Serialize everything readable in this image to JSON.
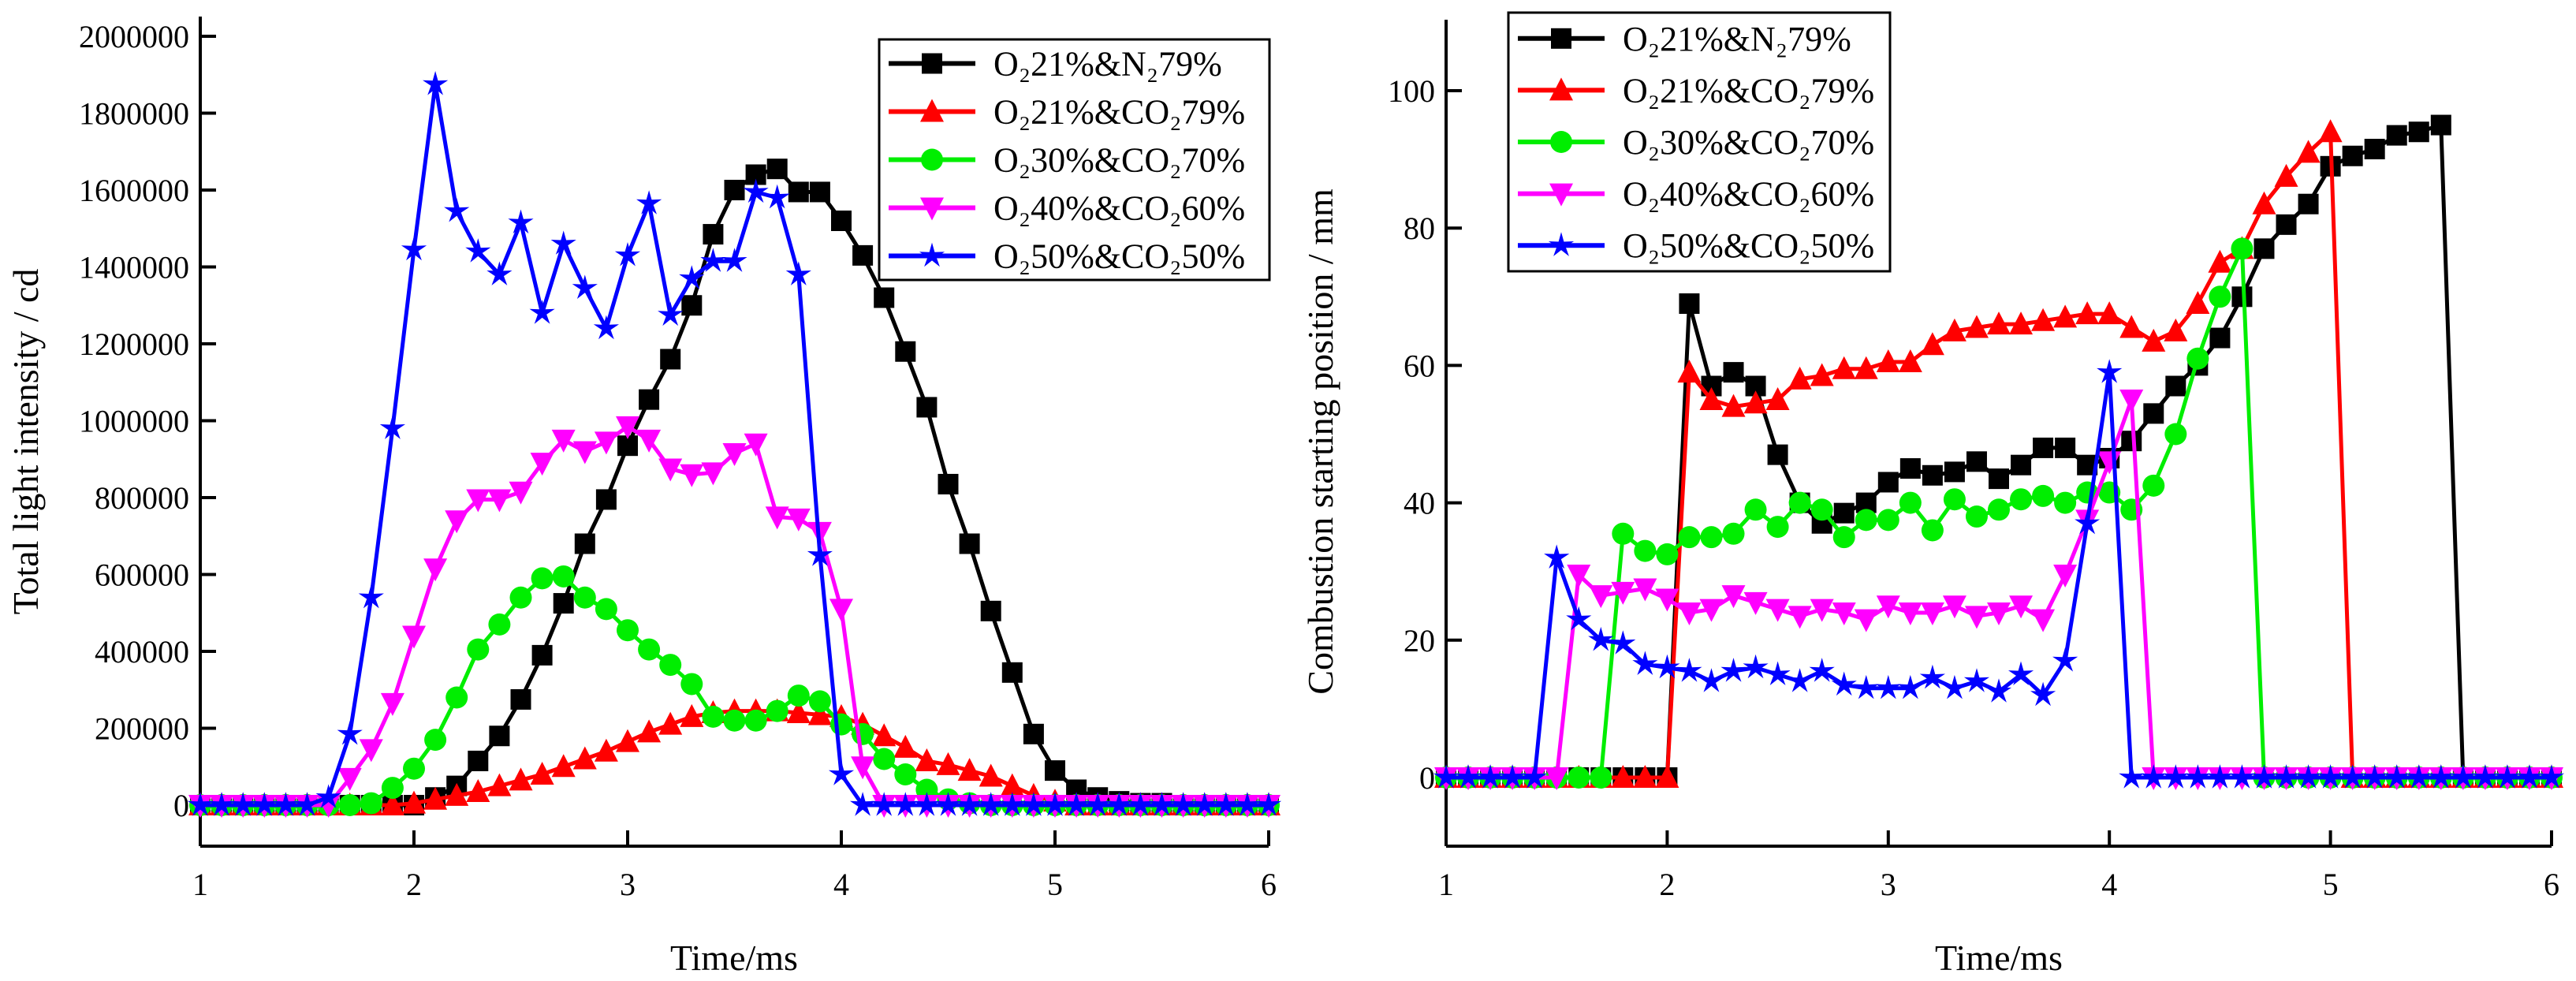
{
  "chart_data": [
    {
      "type": "line",
      "title": "",
      "xlabel": "Time/ms",
      "ylabel": "Total light intensity / cd",
      "xlim": [
        1,
        6
      ],
      "ylim": [
        -100000,
        2000000
      ],
      "xticks": [
        "1",
        "2",
        "3",
        "4",
        "5",
        "6"
      ],
      "yticks": [
        "0",
        "200000",
        "400000",
        "600000",
        "800000",
        "1000000",
        "1200000",
        "1400000",
        "1600000",
        "1800000",
        "2000000"
      ],
      "legend_position": "top-right",
      "x": {
        "start": 1.0,
        "step": 0.1,
        "count": 51
      },
      "series": [
        {
          "name": "O₂21%&N₂79%",
          "color": "#000000",
          "marker": "square",
          "values": [
            0,
            0,
            0,
            0,
            0,
            0,
            0,
            0,
            0,
            0,
            0,
            20000,
            50000,
            115000,
            180000,
            275000,
            390000,
            525000,
            680000,
            795000,
            935000,
            1055000,
            1160000,
            1300000,
            1485000,
            1600000,
            1640000,
            1655000,
            1595000,
            1595000,
            1520000,
            1430000,
            1320000,
            1180000,
            1035000,
            835000,
            680000,
            505000,
            345000,
            185000,
            90000,
            40000,
            20000,
            10000,
            5000,
            5000,
            0,
            0,
            0,
            0,
            0
          ]
        },
        {
          "name": "O₂21%&CO₂79%",
          "color": "#ff0000",
          "marker": "triangle-up",
          "values": [
            0,
            0,
            0,
            0,
            0,
            0,
            0,
            0,
            0,
            0,
            5000,
            15000,
            25000,
            35000,
            50000,
            65000,
            80000,
            100000,
            120000,
            140000,
            165000,
            190000,
            210000,
            230000,
            240000,
            245000,
            245000,
            245000,
            240000,
            235000,
            230000,
            210000,
            180000,
            150000,
            115000,
            105000,
            90000,
            75000,
            50000,
            25000,
            10000,
            0,
            0,
            0,
            0,
            0,
            0,
            0,
            0,
            0,
            0
          ]
        },
        {
          "name": "O₂30%&CO₂70%",
          "color": "#00ee00",
          "marker": "circle",
          "values": [
            0,
            0,
            0,
            0,
            0,
            0,
            0,
            0,
            5000,
            45000,
            95000,
            170000,
            280000,
            405000,
            470000,
            540000,
            590000,
            595000,
            540000,
            510000,
            455000,
            405000,
            365000,
            315000,
            230000,
            220000,
            220000,
            245000,
            285000,
            270000,
            210000,
            185000,
            120000,
            80000,
            40000,
            15000,
            5000,
            0,
            0,
            0,
            0,
            0,
            0,
            0,
            0,
            0,
            0,
            0,
            0,
            0,
            0
          ]
        },
        {
          "name": "O₂40%&CO₂60%",
          "color": "#ff00ff",
          "marker": "triangle-down",
          "values": [
            0,
            0,
            0,
            0,
            0,
            0,
            0,
            70000,
            145000,
            265000,
            440000,
            615000,
            740000,
            795000,
            795000,
            815000,
            890000,
            950000,
            920000,
            945000,
            985000,
            950000,
            875000,
            860000,
            865000,
            915000,
            940000,
            750000,
            745000,
            710000,
            510000,
            100000,
            0,
            0,
            0,
            0,
            0,
            0,
            0,
            0,
            0,
            0,
            0,
            0,
            0,
            0,
            0,
            0,
            0,
            0,
            0
          ]
        },
        {
          "name": "O₂50%&CO₂50%",
          "color": "#0000ff",
          "marker": "star",
          "values": [
            0,
            0,
            0,
            0,
            0,
            0,
            20000,
            185000,
            540000,
            980000,
            1445000,
            1875000,
            1545000,
            1440000,
            1380000,
            1515000,
            1280000,
            1460000,
            1345000,
            1240000,
            1430000,
            1565000,
            1275000,
            1370000,
            1415000,
            1415000,
            1595000,
            1580000,
            1380000,
            650000,
            80000,
            0,
            0,
            0,
            0,
            0,
            0,
            0,
            0,
            0,
            0,
            0,
            0,
            0,
            0,
            0,
            0,
            0,
            0,
            0,
            0
          ]
        }
      ]
    },
    {
      "type": "line",
      "title": "",
      "xlabel": "Time/ms",
      "ylabel": "Combustion starting position / mm",
      "xlim": [
        1,
        6
      ],
      "ylim": [
        -12,
        110
      ],
      "xticks": [
        "1",
        "2",
        "3",
        "4",
        "5",
        "6"
      ],
      "yticks": [
        "0",
        "20",
        "40",
        "60",
        "80",
        "100"
      ],
      "legend_position": "top-left",
      "x": {
        "start": 1.0,
        "step": 0.1,
        "count": 51
      },
      "series": [
        {
          "name": "O₂21%&N₂79%",
          "color": "#000000",
          "marker": "square",
          "values": [
            0,
            0,
            0,
            0,
            0,
            0,
            0,
            0,
            0,
            0,
            0,
            69,
            57,
            59,
            57,
            47,
            40,
            37,
            38.5,
            40,
            43,
            45,
            44,
            44.5,
            46,
            43.5,
            45.5,
            48,
            48,
            45.5,
            46.5,
            49,
            53,
            57,
            60,
            64,
            70,
            77,
            80.5,
            83.5,
            89,
            90.5,
            91.5,
            93.5,
            94,
            95,
            0,
            0,
            0,
            0,
            0
          ]
        },
        {
          "name": "O₂21%&CO₂79%",
          "color": "#ff0000",
          "marker": "triangle-up",
          "values": [
            0,
            0,
            0,
            0,
            0,
            0,
            0,
            0,
            0,
            0,
            0,
            59,
            55,
            54,
            54.5,
            55,
            58,
            58.5,
            59.5,
            59.5,
            60.5,
            60.5,
            63,
            65,
            65.5,
            66,
            66,
            66.5,
            67,
            67.5,
            67.5,
            65.5,
            63.5,
            65,
            69,
            75,
            77,
            83.5,
            87.5,
            91,
            94,
            0,
            0,
            0,
            0,
            0,
            0,
            0,
            0,
            0,
            0
          ]
        },
        {
          "name": "O₂30%&CO₂70%",
          "color": "#00ee00",
          "marker": "circle",
          "values": [
            0,
            0,
            0,
            0,
            0,
            0,
            0,
            0,
            35.5,
            33,
            32.5,
            35,
            35,
            35.5,
            39,
            36.5,
            40,
            39,
            35,
            37.5,
            37.5,
            40,
            36,
            40.5,
            38,
            39,
            40.5,
            41,
            40,
            41.5,
            41.5,
            39,
            42.5,
            50,
            61,
            70,
            77,
            0,
            0,
            0,
            0,
            0,
            0,
            0,
            0,
            0,
            0,
            0,
            0,
            0,
            0
          ]
        },
        {
          "name": "O₂40%&CO₂60%",
          "color": "#ff00ff",
          "marker": "triangle-down",
          "values": [
            0,
            0,
            0,
            0,
            0,
            0,
            29.5,
            26.5,
            27,
            27.5,
            26,
            24,
            24.5,
            26.5,
            25.5,
            24.5,
            23.5,
            24.5,
            24,
            23,
            25,
            24,
            24,
            25,
            23.5,
            24,
            25,
            23,
            29.5,
            37.5,
            46,
            55,
            0,
            0,
            0,
            0,
            0,
            0,
            0,
            0,
            0,
            0,
            0,
            0,
            0,
            0,
            0,
            0,
            0,
            0,
            0
          ]
        },
        {
          "name": "O₂50%&CO₂50%",
          "color": "#0000ff",
          "marker": "star",
          "values": [
            0,
            0,
            0,
            0,
            0,
            32,
            23,
            20,
            19.5,
            16.5,
            16,
            15.5,
            14,
            15.5,
            16,
            15,
            14,
            15.5,
            13.5,
            13,
            13,
            13,
            14.5,
            13,
            14,
            12.5,
            15,
            12,
            17,
            37,
            59,
            0,
            0,
            0,
            0,
            0,
            0,
            0,
            0,
            0,
            0,
            0,
            0,
            0,
            0,
            0,
            0,
            0,
            0,
            0,
            0
          ]
        }
      ]
    }
  ]
}
